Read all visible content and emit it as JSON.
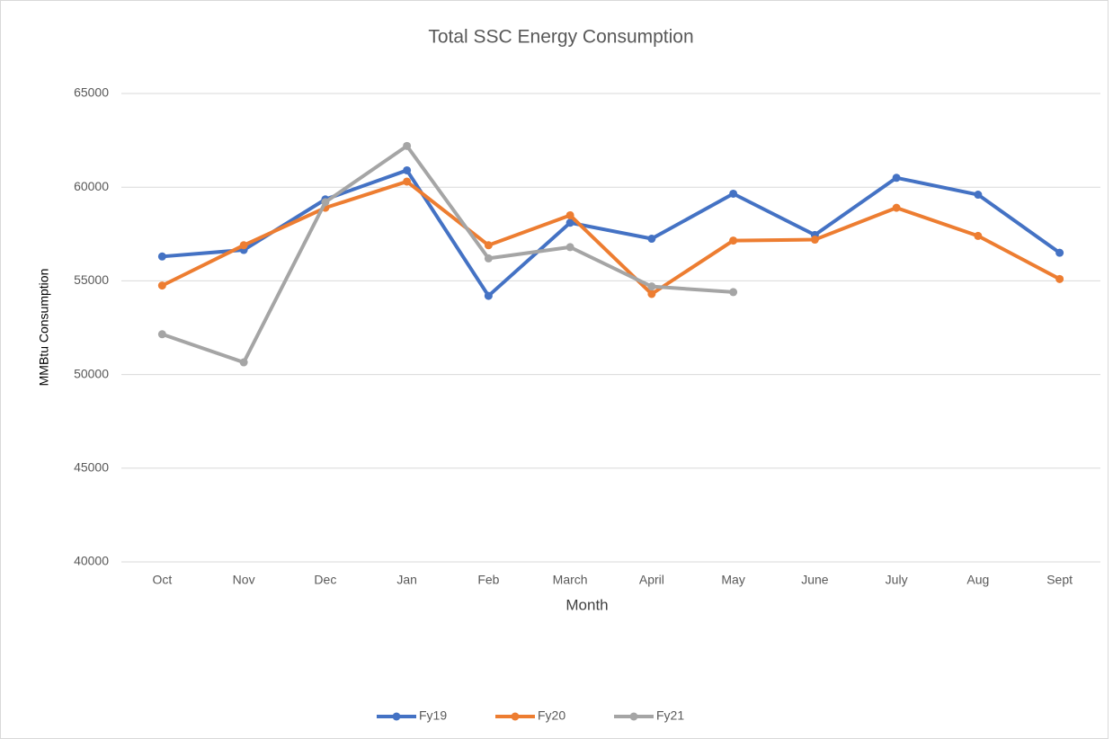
{
  "chart_data": {
    "type": "line",
    "title": "Total SSC Energy Consumption",
    "x_label": "Month",
    "y_label": "MMBtu Consumption",
    "categories": [
      "Oct",
      "Nov",
      "Dec",
      "Jan",
      "Feb",
      "March",
      "April",
      "May",
      "June",
      "July",
      "Aug",
      "Sept"
    ],
    "series": [
      {
        "name": "Fy19",
        "color": "#4472c4",
        "values": [
          56300,
          56650,
          59350,
          60900,
          54200,
          58100,
          57250,
          59650,
          57450,
          60500,
          59600,
          56500
        ]
      },
      {
        "name": "Fy20",
        "color": "#ed7d31",
        "values": [
          54750,
          56900,
          58900,
          60300,
          56900,
          58500,
          54300,
          57150,
          57200,
          58900,
          57400,
          55100
        ]
      },
      {
        "name": "Fy21",
        "color": "#a5a5a5",
        "values": [
          52150,
          50650,
          59200,
          62200,
          56200,
          56800,
          54700,
          54400,
          null,
          null,
          null,
          null
        ]
      }
    ],
    "ylim": [
      40000,
      65000
    ],
    "yticks": [
      40000,
      45000,
      50000,
      55000,
      60000,
      65000
    ],
    "grid": true,
    "legend": "bottom"
  }
}
